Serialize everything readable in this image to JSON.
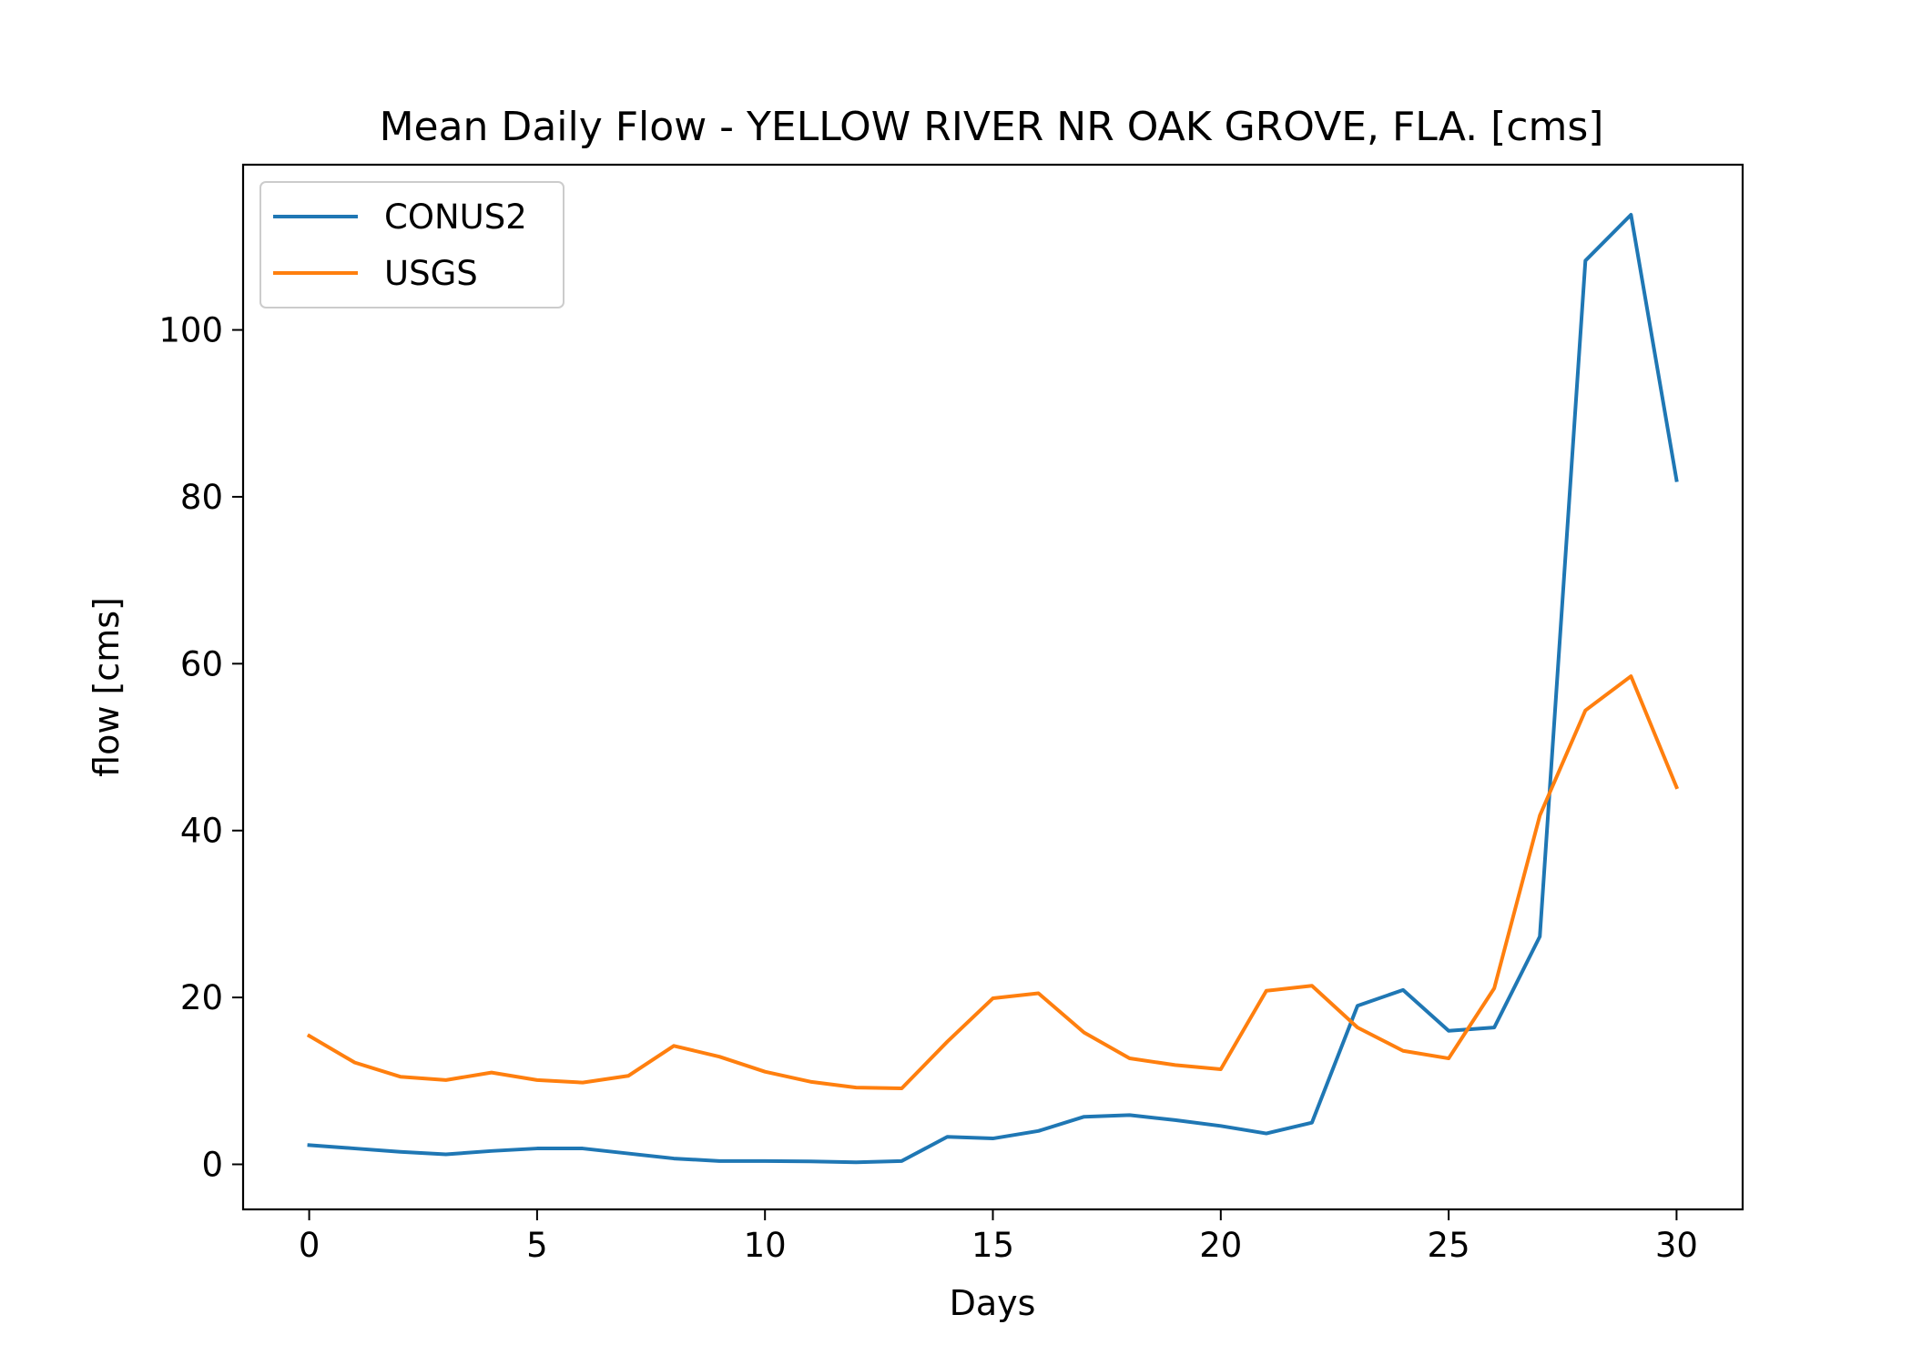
{
  "chart_data": {
    "type": "line",
    "title": "Mean Daily Flow - YELLOW RIVER NR OAK GROVE, FLA. [cms]",
    "xlabel": "Days",
    "ylabel": "flow [cms]",
    "xlim": [
      -1.45,
      31.45
    ],
    "ylim": [
      -5.4,
      119.8
    ],
    "xticks": [
      0,
      5,
      10,
      15,
      20,
      25,
      30
    ],
    "yticks": [
      0,
      20,
      40,
      60,
      80,
      100
    ],
    "grid": false,
    "legend": "upper left",
    "x": [
      0,
      1,
      2,
      3,
      4,
      5,
      6,
      7,
      8,
      9,
      10,
      11,
      12,
      13,
      14,
      15,
      16,
      17,
      18,
      19,
      20,
      21,
      22,
      23,
      24,
      25,
      26,
      27,
      28,
      29,
      30
    ],
    "series": [
      {
        "name": "CONUS2",
        "color": "#1f77b4",
        "values": [
          2.3,
          1.9,
          1.5,
          1.2,
          1.6,
          1.9,
          1.9,
          1.3,
          0.7,
          0.4,
          0.4,
          0.35,
          0.25,
          0.4,
          3.3,
          3.1,
          4.0,
          5.7,
          5.9,
          5.3,
          4.6,
          3.7,
          5.0,
          19.0,
          20.9,
          16.0,
          16.4,
          27.3,
          108.3,
          113.8,
          82.0
        ]
      },
      {
        "name": "USGS",
        "color": "#ff7f0e",
        "values": [
          15.4,
          12.2,
          10.5,
          10.1,
          11.0,
          10.1,
          9.8,
          10.6,
          14.2,
          12.9,
          11.1,
          9.9,
          9.2,
          9.1,
          14.7,
          19.9,
          20.5,
          15.8,
          12.7,
          11.9,
          11.4,
          20.8,
          21.4,
          16.4,
          13.6,
          12.7,
          21.1,
          41.8,
          54.4,
          58.5,
          45.2
        ]
      }
    ]
  }
}
